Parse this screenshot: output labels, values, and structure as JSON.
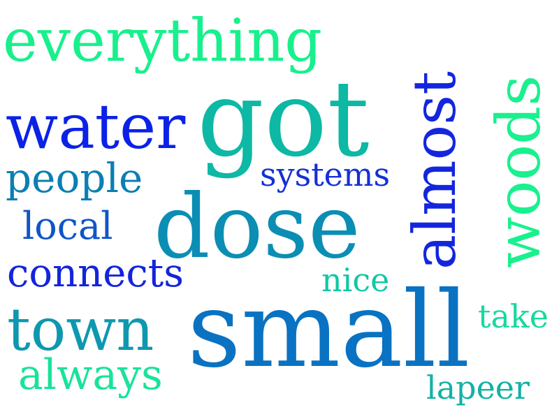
{
  "words": [
    {
      "text": "everything",
      "color": "#17f08c"
    },
    {
      "text": "got",
      "color": "#0db8a4"
    },
    {
      "text": "water",
      "color": "#0b22e6"
    },
    {
      "text": "almost",
      "color": "#1326de"
    },
    {
      "text": "woods",
      "color": "#19f08e"
    },
    {
      "text": "people",
      "color": "#0b7fb3"
    },
    {
      "text": "systems",
      "color": "#1430d6"
    },
    {
      "text": "dose",
      "color": "#0b8eb4"
    },
    {
      "text": "local",
      "color": "#1055c7"
    },
    {
      "text": "connects",
      "color": "#1424dc"
    },
    {
      "text": "nice",
      "color": "#10c7a5"
    },
    {
      "text": "town",
      "color": "#0e98af"
    },
    {
      "text": "small",
      "color": "#0a72c2"
    },
    {
      "text": "take",
      "color": "#16d9a0"
    },
    {
      "text": "always",
      "color": "#19e39a"
    },
    {
      "text": "lapeer",
      "color": "#13b2a4"
    }
  ]
}
